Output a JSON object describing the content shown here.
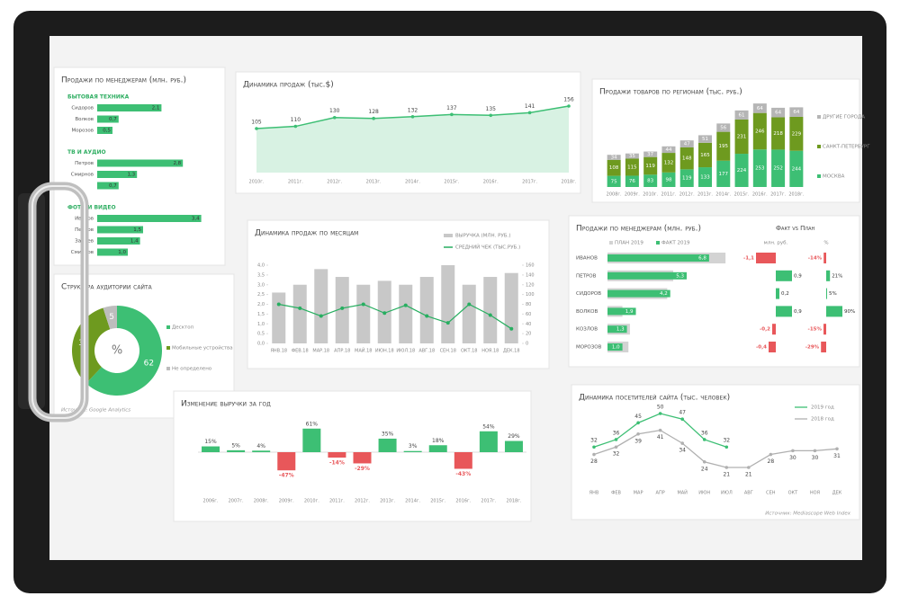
{
  "chart_data": [
    {
      "type": "hbar_groups",
      "title": "Продажи по менеджерам (млн. руб.)",
      "color": "#3dbf74",
      "groups": [
        {
          "name": "БЫТОВАЯ ТЕХНИКА",
          "categories": [
            "Сидоров",
            "Волков",
            "Морозов"
          ],
          "values": [
            2.1,
            0.7,
            0.5
          ],
          "value_labels": [
            "2,1",
            "0,7",
            "0,5"
          ]
        },
        {
          "name": "ТВ И АУДИО",
          "categories": [
            "Петров",
            "Смирнов",
            null
          ],
          "values": [
            2.8,
            1.3,
            0.7
          ],
          "value_labels": [
            "2,8",
            "1,3",
            "0,7"
          ]
        },
        {
          "name": "ФОТО И ВИДЕО",
          "categories": [
            "Иванов",
            "Петров",
            "Зайцев",
            "Смирнов"
          ],
          "values": [
            3.4,
            1.5,
            1.4,
            1.0
          ],
          "value_labels": [
            "3,4",
            "1,5",
            "1,4",
            "1,0"
          ]
        }
      ]
    },
    {
      "type": "area",
      "title": "Динамика продаж (тыс.$)",
      "categories": [
        "2010г.",
        "2011г.",
        "2012г.",
        "2013г.",
        "2014г.",
        "2015г.",
        "2016г.",
        "2017г.",
        "2018г."
      ],
      "values": [
        105,
        110,
        130,
        128,
        132,
        137,
        135,
        141,
        156
      ],
      "color": "#3dbf74"
    },
    {
      "type": "stacked_bar",
      "title": "Продажи товаров по регионам (тыс. руб.)",
      "categories": [
        "2008г.",
        "2009г.",
        "2010г.",
        "2011г.",
        "2012г.",
        "2013г.",
        "2014г.",
        "2015г.",
        "2016г.",
        "2017г.",
        "2018г."
      ],
      "series": [
        {
          "name": "МОСКВА",
          "color": "#3dbf74",
          "values": [
            75,
            76,
            83,
            98,
            119,
            133,
            177,
            224,
            253,
            252,
            244
          ]
        },
        {
          "name": "САНКТ-ПЕТЕРБУРГ",
          "color": "#6e9a1f",
          "values": [
            108,
            115,
            119,
            132,
            148,
            165,
            195,
            231,
            246,
            218,
            229
          ]
        },
        {
          "name": "ДРУГИЕ ГОРОДА",
          "color": "#b5b5b5",
          "values": [
            34,
            35,
            37,
            44,
            47,
            51,
            56,
            61,
            64,
            64,
            64
          ]
        }
      ]
    },
    {
      "type": "bar_line",
      "title": "Динамика продаж по месяцам",
      "categories": [
        "ЯНВ.18",
        "ФЕВ.18",
        "МАР.18",
        "АПР.18",
        "МАЙ.18",
        "ИЮН.18",
        "ИЮЛ.18",
        "АВГ.18",
        "СЕН.18",
        "ОКТ.18",
        "НОЯ.18",
        "ДЕК.18"
      ],
      "series": [
        {
          "name": "ВЫРУЧКА (МЛН. РУБ.)",
          "color": "#c8c8c8",
          "values": [
            2.6,
            3.0,
            3.8,
            3.4,
            3.0,
            3.2,
            3.0,
            3.4,
            4.0,
            3.0,
            3.4,
            3.6
          ]
        },
        {
          "name": "СРЕДНИЙ ЧЕК (ТЫС.РУБ.)",
          "color": "#27ae60",
          "axis": "y2",
          "values": [
            80,
            72,
            56,
            72,
            80,
            62,
            78,
            56,
            42,
            80,
            58,
            30
          ]
        }
      ],
      "ylim": [
        0,
        4
      ],
      "yticks": [
        {
          "value": 0,
          "label": "0,0"
        },
        {
          "value": 0.5,
          "label": "0,5"
        },
        {
          "value": 1,
          "label": "1,0"
        },
        {
          "value": 1.5,
          "label": "1,5"
        },
        {
          "value": 2,
          "label": "2,0"
        },
        {
          "value": 2.5,
          "label": "2,5"
        },
        {
          "value": 3,
          "label": "3,0"
        },
        {
          "value": 3.5,
          "label": "3,5"
        },
        {
          "value": 4,
          "label": "4,0"
        }
      ],
      "y2lim": [
        0,
        160
      ],
      "y2ticks": [
        0,
        20,
        40,
        60,
        80,
        100,
        120,
        140,
        160
      ]
    },
    {
      "type": "donut",
      "title": "Структура аудитории сайта",
      "categories": [
        "Десктоп",
        "Мобильные устройства",
        "Не определено"
      ],
      "values": [
        62,
        33,
        5
      ],
      "colors": [
        "#3dbf74",
        "#6e9a1f",
        "#bdbdbd"
      ],
      "center_label": "%",
      "source": "Источник: Google Analytics"
    },
    {
      "type": "plan_fact",
      "title": "Продажи по менеджерам (млн. руб.)",
      "subtitle": "Факт vs План",
      "categories": [
        "ИВАНОВ",
        "ПЕТРОВ",
        "СИДОРОВ",
        "ВОЛКОВ",
        "КОЗЛОВ",
        "МОРОЗОВ"
      ],
      "series": [
        {
          "name": "ПЛАН 2019",
          "color": "#d3d3d3",
          "values": [
            7.9,
            4.4,
            4.0,
            1.0,
            1.5,
            1.4
          ]
        },
        {
          "name": "ФАКТ 2019",
          "color": "#3dbf74",
          "values": [
            6.8,
            5.3,
            4.2,
            1.9,
            1.3,
            1.0
          ],
          "value_labels": [
            "6,8",
            "5,3",
            "4,2",
            "1,9",
            "1,3",
            "1,0"
          ]
        }
      ],
      "deviation": {
        "header": "млн. руб.",
        "values": [
          -1.1,
          0.9,
          0.2,
          0.9,
          -0.2,
          -0.4
        ],
        "value_labels": [
          "-1,1",
          "0,9",
          "0,2",
          "0,9",
          "-0,2",
          "-0,4"
        ]
      },
      "deviation_pct": {
        "header": "%",
        "values": [
          -14,
          21,
          5,
          90,
          -15,
          -29
        ],
        "value_labels": [
          "-14%",
          "21%",
          "5%",
          "90%",
          "-15%",
          "-29%"
        ]
      },
      "positive_color": "#3dbf74",
      "negative_color": "#e8575a"
    },
    {
      "type": "bar",
      "title": "Изменение выручки за год",
      "categories": [
        "2006г.",
        "2007г.",
        "2008г.",
        "2009г.",
        "2010г.",
        "2011г.",
        "2012г.",
        "2013г.",
        "2014г.",
        "2015г.",
        "2016г.",
        "2017г.",
        "2018г."
      ],
      "values": [
        15,
        5,
        4,
        -47,
        61,
        -14,
        -29,
        35,
        3,
        18,
        -43,
        54,
        29
      ],
      "value_labels": [
        "15%",
        "5%",
        "4%",
        "-47%",
        "61%",
        "-14%",
        "-29%",
        "35%",
        "3%",
        "18%",
        "-43%",
        "54%",
        "29%"
      ],
      "color": "#3dbf74",
      "negative_color": "#e8575a"
    },
    {
      "type": "line",
      "title": "Динамика посетителей сайта (тыс. человек)",
      "categories": [
        "ЯНВ",
        "ФЕВ",
        "МАР",
        "АПР",
        "МАЙ",
        "ИЮН",
        "ИЮЛ",
        "АВГ",
        "СЕН",
        "ОКТ",
        "НОЯ",
        "ДЕК"
      ],
      "series": [
        {
          "name": "2019 год",
          "color": "#3dbf74",
          "values": [
            32,
            36,
            45,
            50,
            47,
            36,
            32,
            null,
            null,
            null,
            null,
            null
          ]
        },
        {
          "name": "2018 год",
          "color": "#b0b0b0",
          "values": [
            28,
            32,
            39,
            41,
            34,
            24,
            21,
            21,
            28,
            30,
            30,
            31
          ]
        }
      ],
      "source": "Источник: Mediascope Web Index"
    }
  ]
}
